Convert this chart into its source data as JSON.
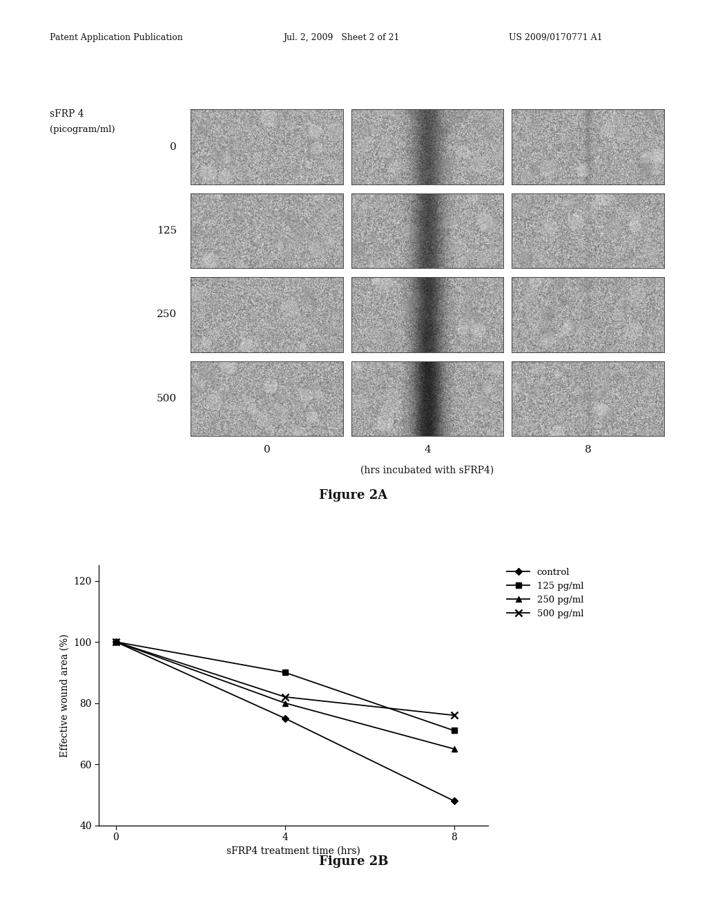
{
  "header_text_left": "Patent Application Publication",
  "header_text_mid": "Jul. 2, 2009   Sheet 2 of 21",
  "header_text_right": "US 2009/0170771 A1",
  "figure2a_title": "Figure 2A",
  "figure2b_title": "Figure 2B",
  "sfrp4_label_line1": "sFRP 4",
  "sfrp4_label_line2": "(picogram/ml)",
  "row_labels": [
    "0",
    "125",
    "250",
    "500"
  ],
  "col_labels": [
    "0",
    "4",
    "8"
  ],
  "x_label_2a": "(hrs incubated with sFRP4)",
  "x_label_2b": "sFRP4 treatment time (hrs)",
  "y_label_2b": "Effective wound area (%)",
  "series_labels": [
    "control",
    "125 pg/ml",
    "250 pg/ml",
    "500 pg/ml"
  ],
  "x_data": [
    0,
    4,
    8
  ],
  "control_data": [
    100,
    75,
    48
  ],
  "s125_data": [
    100,
    90,
    71
  ],
  "s250_data": [
    100,
    80,
    65
  ],
  "s500_data": [
    100,
    82,
    76
  ],
  "ylim_2b": [
    40,
    125
  ],
  "yticks_2b": [
    40,
    60,
    80,
    100,
    120
  ],
  "xticks_2b": [
    0,
    4,
    8
  ],
  "bg_color": "#ffffff",
  "line_color": "#000000",
  "fig_width": 10.24,
  "fig_height": 13.2,
  "dpi": 100
}
